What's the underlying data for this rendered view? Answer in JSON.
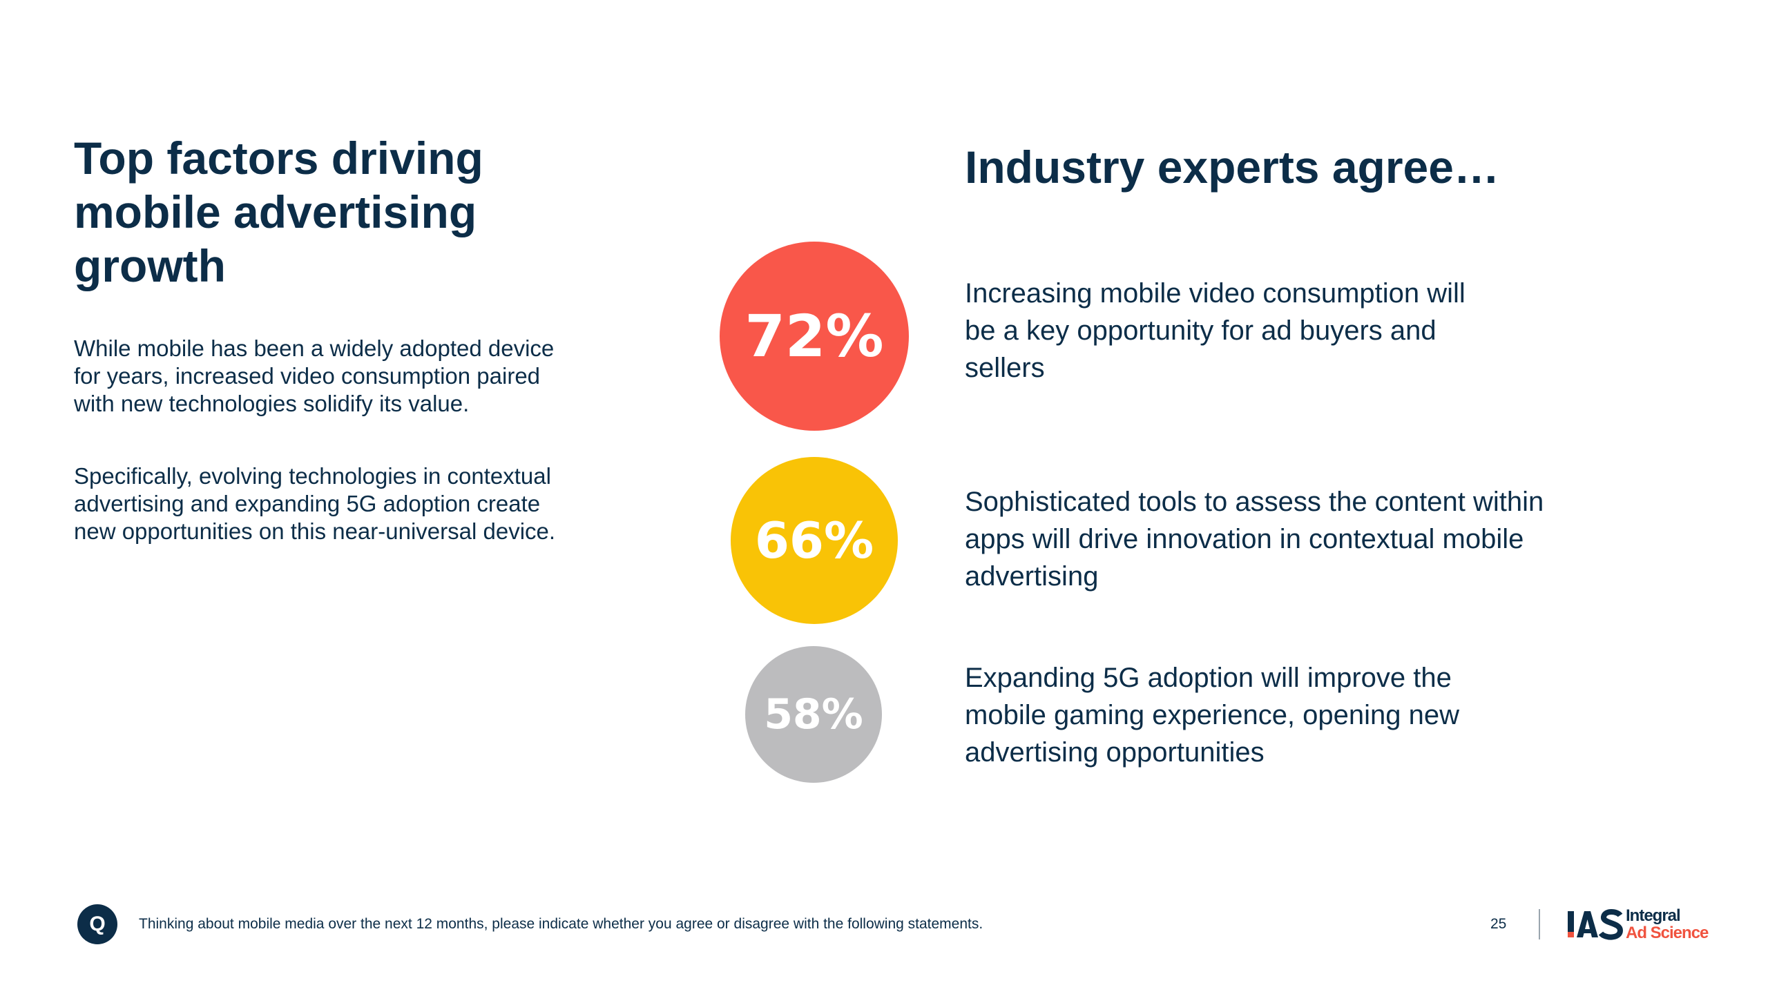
{
  "left": {
    "title": "Top factors driving mobile advertising growth",
    "paragraph1": "While mobile has been a widely adopted device for years, increased video consumption paired with new technologies solidify its value.",
    "paragraph2": "Specifically, evolving technologies in contextual advertising and expanding 5G adoption create new opportunities on this near-universal device."
  },
  "right": {
    "title": "Industry experts agree…",
    "stats": [
      {
        "value": "72%",
        "color": "#f9574a",
        "text": "Increasing mobile video consumption will be a key opportunity for ad buyers and sellers"
      },
      {
        "value": "66%",
        "color": "#f9c306",
        "text": "Sophisticated tools to assess the content within apps will drive innovation in contextual mobile advertising"
      },
      {
        "value": "58%",
        "color": "#bcbcbe",
        "text": "Expanding 5G adoption will improve the mobile gaming experience, opening new advertising opportunities"
      }
    ]
  },
  "footer": {
    "question_badge": "Q",
    "question": "Thinking about mobile media over the next 12 months, please indicate whether you agree or disagree with the following statements.",
    "page_number": "25",
    "logo": {
      "mark": "IAS",
      "line1": "Integral",
      "line2": "Ad Science"
    }
  },
  "colors": {
    "navy": "#0c2d48",
    "red": "#f9574a",
    "yellow": "#f9c306",
    "gray": "#bcbcbe",
    "logo_red": "#f0533f"
  }
}
